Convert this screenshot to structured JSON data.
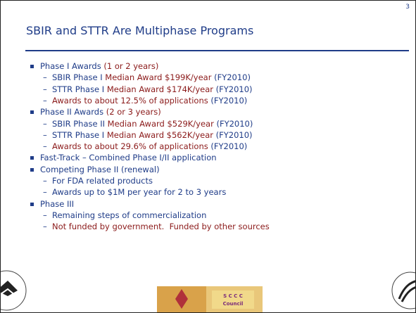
{
  "slide_number": "3",
  "title": "SBIR and STTR Are Multiphase Programs",
  "items": [
    {
      "level": 1,
      "segments": [
        {
          "text": "Phase I Awards ",
          "color": "#1f3c88"
        },
        {
          "text": "(1 or 2 years)",
          "color": "#8b1a1a"
        }
      ]
    },
    {
      "level": 2,
      "segments": [
        {
          "text": "SBIR Phase I ",
          "color": "#1f3c88"
        },
        {
          "text": "Median Award $199K/year ",
          "color": "#8b1a1a"
        },
        {
          "text": "(FY2010)",
          "color": "#1f3c88"
        }
      ]
    },
    {
      "level": 2,
      "segments": [
        {
          "text": "STTR Phase I ",
          "color": "#1f3c88"
        },
        {
          "text": "Median Award $174K/year ",
          "color": "#8b1a1a"
        },
        {
          "text": "(FY2010)",
          "color": "#1f3c88"
        }
      ]
    },
    {
      "level": 2,
      "segments": [
        {
          "text": "Awards to about 12.5% of applications ",
          "color": "#8b1a1a"
        },
        {
          "text": "(FY2010)",
          "color": "#1f3c88"
        }
      ]
    },
    {
      "level": 1,
      "segments": [
        {
          "text": "Phase II Awards ",
          "color": "#1f3c88"
        },
        {
          "text": "(2 or 3 years)",
          "color": "#8b1a1a"
        }
      ]
    },
    {
      "level": 2,
      "segments": [
        {
          "text": "SBIR Phase II ",
          "color": "#1f3c88"
        },
        {
          "text": "Median Award $529K/year ",
          "color": "#8b1a1a"
        },
        {
          "text": "(FY2010)",
          "color": "#1f3c88"
        }
      ]
    },
    {
      "level": 2,
      "segments": [
        {
          "text": "STTR Phase I ",
          "color": "#1f3c88"
        },
        {
          "text": "Median Award $562K/year ",
          "color": "#8b1a1a"
        },
        {
          "text": "(FY2010)",
          "color": "#1f3c88"
        }
      ]
    },
    {
      "level": 2,
      "segments": [
        {
          "text": "Awards to about 29.6% of applications ",
          "color": "#8b1a1a"
        },
        {
          "text": "(FY2010)",
          "color": "#1f3c88"
        }
      ]
    },
    {
      "level": 1,
      "segments": [
        {
          "text": "Fast-Track – Combined Phase I/II application",
          "color": "#1f3c88"
        }
      ]
    },
    {
      "level": 1,
      "segments": [
        {
          "text": "Competing Phase II (renewal)",
          "color": "#1f3c88"
        }
      ]
    },
    {
      "level": 2,
      "segments": [
        {
          "text": "For FDA related products",
          "color": "#1f3c88"
        }
      ]
    },
    {
      "level": 2,
      "segments": [
        {
          "text": "Awards up to $1M per year for 2 to 3 years",
          "color": "#1f3c88"
        }
      ]
    },
    {
      "level": 1,
      "segments": [
        {
          "text": "Phase III",
          "color": "#1f3c88"
        }
      ]
    },
    {
      "level": 2,
      "segments": [
        {
          "text": "Remaining steps of commercialization",
          "color": "#1f3c88"
        }
      ]
    },
    {
      "level": 2,
      "segments": [
        {
          "text": "Not funded by government.  Funded by other sources",
          "color": "#8b1a1a"
        }
      ]
    }
  ]
}
